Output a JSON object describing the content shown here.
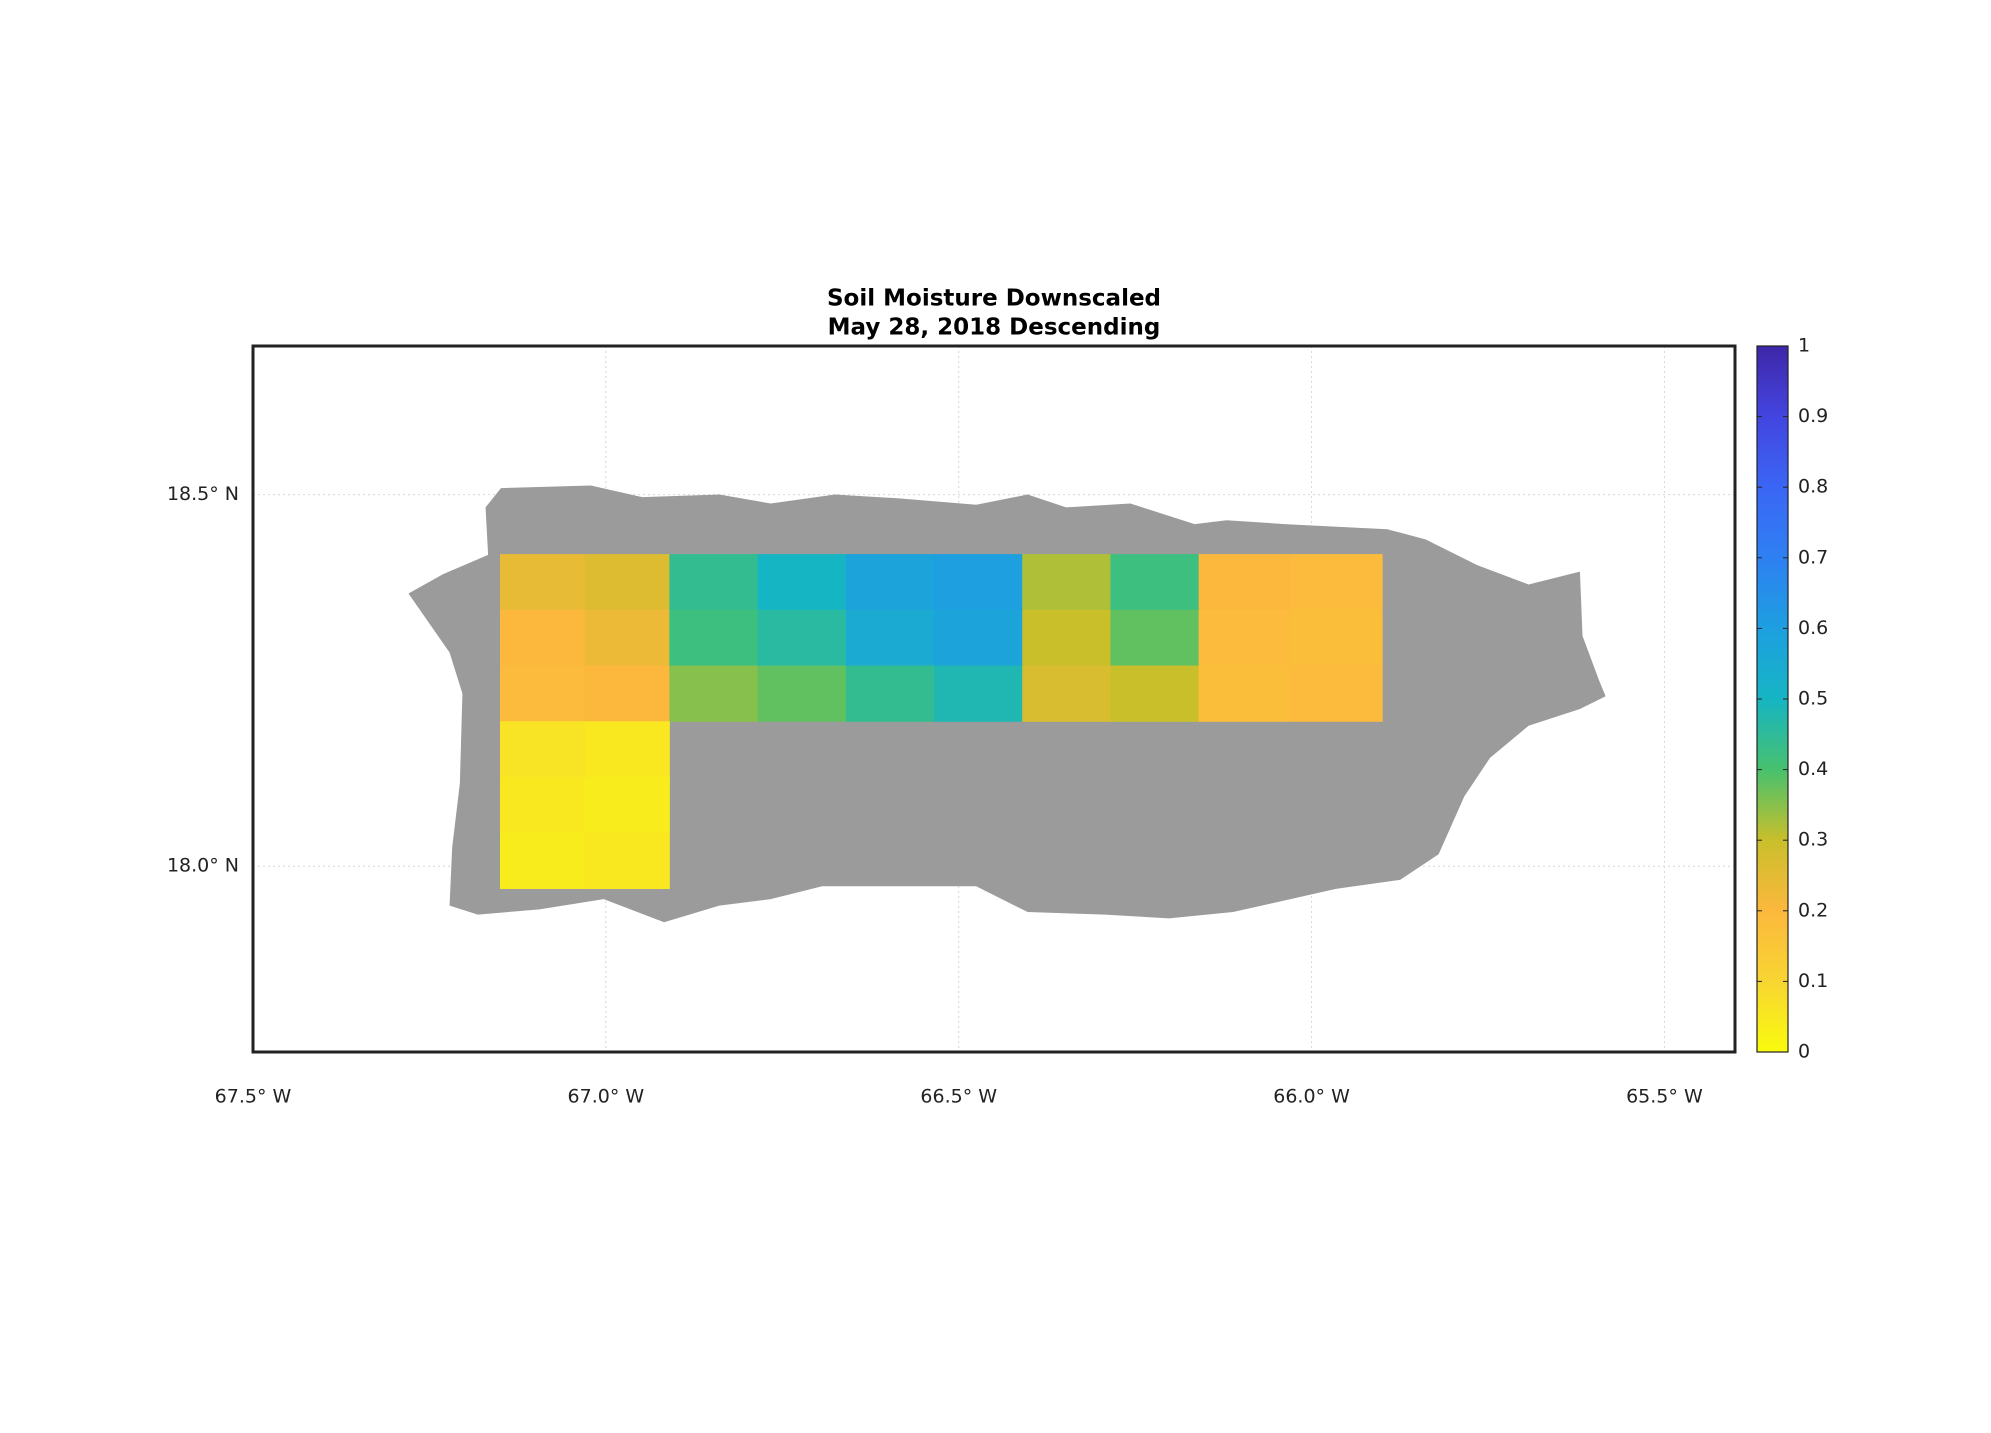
{
  "chart_data": {
    "type": "gridmap",
    "title": "Soil Moisture Downscaled",
    "subtitle": "May 28, 2018 Descending",
    "xlim": [
      -67.5,
      -65.4
    ],
    "ylim": [
      17.75,
      18.7
    ],
    "xticks": [
      {
        "value": -67.5,
        "label": "67.5° W"
      },
      {
        "value": -67.0,
        "label": "67.0° W"
      },
      {
        "value": -66.5,
        "label": "66.5° W"
      },
      {
        "value": -66.0,
        "label": "66.0° W"
      },
      {
        "value": -65.5,
        "label": "65.5° W"
      }
    ],
    "yticks": [
      {
        "value": 18.0,
        "label": "18.0° N"
      },
      {
        "value": 18.5,
        "label": "18.5° N"
      }
    ],
    "grid": true,
    "land_color": "#9b9b9b",
    "lon_edges": [
      -67.15,
      -67.03,
      -66.91,
      -66.785,
      -66.66,
      -66.535,
      -66.41,
      -66.285,
      -66.16,
      -66.03,
      -65.9
    ],
    "lat_edges": [
      18.42,
      18.345,
      18.27,
      18.195,
      18.12,
      18.045,
      17.97
    ],
    "values": [
      [
        0.24,
        0.26,
        0.44,
        0.5,
        0.58,
        0.6,
        0.32,
        0.42,
        0.2,
        0.19
      ],
      [
        0.2,
        0.23,
        0.42,
        0.46,
        0.55,
        0.58,
        0.3,
        0.38,
        0.19,
        0.18
      ],
      [
        0.19,
        0.2,
        0.35,
        0.38,
        0.44,
        0.48,
        0.27,
        0.3,
        0.18,
        0.19
      ],
      [
        0.06,
        0.05,
        null,
        null,
        null,
        null,
        null,
        null,
        null,
        null
      ],
      [
        0.05,
        0.04,
        null,
        null,
        null,
        null,
        null,
        null,
        null,
        null
      ],
      [
        0.04,
        0.05,
        null,
        null,
        null,
        null,
        null,
        null,
        null,
        null
      ]
    ],
    "clim": [
      0,
      1
    ],
    "cticks": [
      0,
      0.1,
      0.2,
      0.3,
      0.4,
      0.5,
      0.6,
      0.7,
      0.8,
      0.9,
      1
    ],
    "colormap": [
      "#f9fb0e",
      "#f8d532",
      "#fcb83d",
      "#c9bf2b",
      "#47c16e",
      "#16b5c4",
      "#1d9fe0",
      "#2e80f2",
      "#3b66f5",
      "#4345e0",
      "#3e26a8"
    ]
  }
}
